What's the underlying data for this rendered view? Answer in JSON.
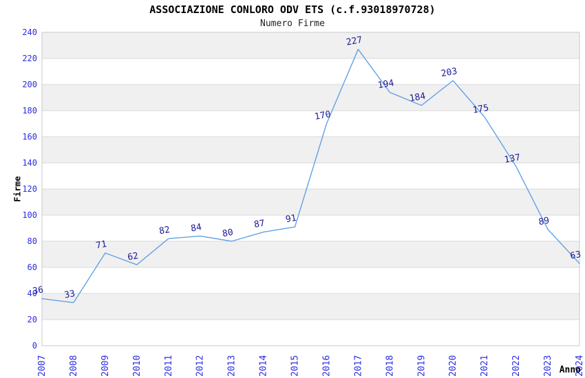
{
  "page": {
    "background_color": "#ffffff"
  },
  "chart_data": {
    "type": "line",
    "title": "ASSOCIAZIONE CONLORO ODV ETS (c.f.93018970728)",
    "subtitle": "Numero Firme",
    "xlabel": "Anno",
    "ylabel": "Firme",
    "categories": [
      "2007",
      "2008",
      "2009",
      "2010",
      "2011",
      "2012",
      "2013",
      "2014",
      "2015",
      "2016",
      "2017",
      "2018",
      "2019",
      "2020",
      "2021",
      "2022",
      "2023",
      "2024"
    ],
    "series": [
      {
        "name": "Numero Firme",
        "values": [
          36,
          33,
          71,
          62,
          82,
          84,
          80,
          87,
          91,
          170,
          227,
          194,
          184,
          203,
          175,
          137,
          89,
          63
        ]
      }
    ],
    "ylim": [
      0,
      240
    ],
    "ytick_step": 20,
    "yticks": [
      0,
      20,
      40,
      60,
      80,
      100,
      120,
      140,
      160,
      180,
      200,
      220,
      240
    ],
    "grid": true,
    "legend_position": "none",
    "colors": {
      "line": "#62a1e4",
      "value_labels": "#1a1a94",
      "axis_tick_labels": "#2b2be0",
      "axis_titles": "#000000",
      "title": "#000000",
      "subtitle": "#222222",
      "band_light": "#ffffff",
      "band_dark": "#f0f0f0",
      "gridline": "#d8d8d8",
      "plot_border": "#c9c9c9"
    }
  }
}
